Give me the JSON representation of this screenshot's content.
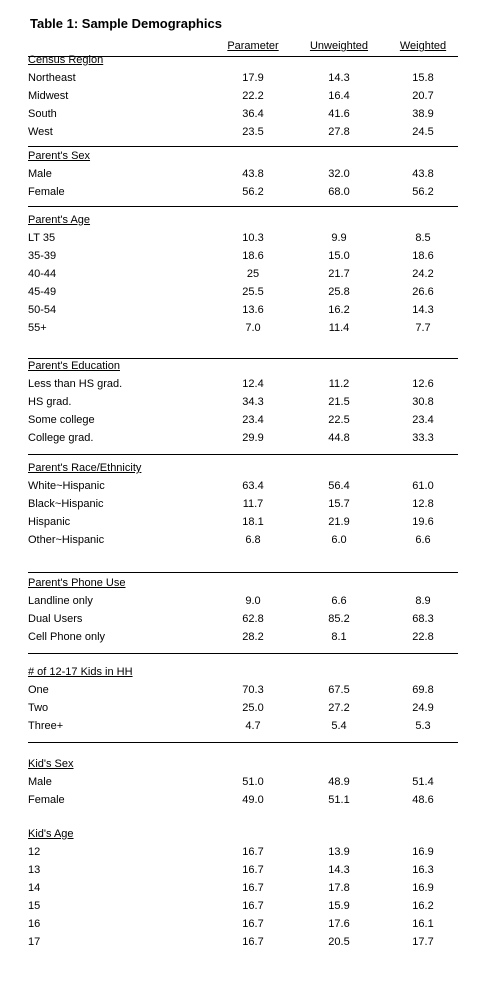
{
  "title": "Table 1: Sample Demographics",
  "columns": [
    "Parameter",
    "Unweighted",
    "Weighted"
  ],
  "sections": [
    {
      "title": "Census Region",
      "rows": [
        {
          "label": "Northeast",
          "parameter": "17.9",
          "unweighted": "14.3",
          "weighted": "15.8"
        },
        {
          "label": "Midwest",
          "parameter": "22.2",
          "unweighted": "16.4",
          "weighted": "20.7"
        },
        {
          "label": "South",
          "parameter": "36.4",
          "unweighted": "41.6",
          "weighted": "38.9"
        },
        {
          "label": "West",
          "parameter": "23.5",
          "unweighted": "27.8",
          "weighted": "24.5"
        }
      ]
    },
    {
      "title": "Parent's Sex",
      "rows": [
        {
          "label": "Male",
          "parameter": "43.8",
          "unweighted": "32.0",
          "weighted": "43.8"
        },
        {
          "label": "Female",
          "parameter": "56.2",
          "unweighted": "68.0",
          "weighted": "56.2"
        }
      ]
    },
    {
      "title": "Parent's Age",
      "rows": [
        {
          "label": "LT 35",
          "parameter": "10.3",
          "unweighted": "9.9",
          "weighted": "8.5"
        },
        {
          "label": "35-39",
          "parameter": "18.6",
          "unweighted": "15.0",
          "weighted": "18.6"
        },
        {
          "label": "40-44",
          "parameter": "25",
          "unweighted": "21.7",
          "weighted": "24.2"
        },
        {
          "label": "45-49",
          "parameter": "25.5",
          "unweighted": "25.8",
          "weighted": "26.6"
        },
        {
          "label": "50-54",
          "parameter": "13.6",
          "unweighted": "16.2",
          "weighted": "14.3"
        },
        {
          "label": "55+",
          "parameter": "7.0",
          "unweighted": "11.4",
          "weighted": "7.7"
        }
      ]
    },
    {
      "title": "Parent's Education",
      "rows": [
        {
          "label": "Less than HS grad.",
          "parameter": "12.4",
          "unweighted": "11.2",
          "weighted": "12.6"
        },
        {
          "label": "HS grad.",
          "parameter": "34.3",
          "unweighted": "21.5",
          "weighted": "30.8"
        },
        {
          "label": "Some college",
          "parameter": "23.4",
          "unweighted": "22.5",
          "weighted": "23.4"
        },
        {
          "label": "College grad.",
          "parameter": "29.9",
          "unweighted": "44.8",
          "weighted": "33.3"
        }
      ]
    },
    {
      "title": "Parent's Race/Ethnicity",
      "rows": [
        {
          "label": "White~Hispanic",
          "parameter": "63.4",
          "unweighted": "56.4",
          "weighted": "61.0"
        },
        {
          "label": "Black~Hispanic",
          "parameter": "11.7",
          "unweighted": "15.7",
          "weighted": "12.8"
        },
        {
          "label": "Hispanic",
          "parameter": "18.1",
          "unweighted": "21.9",
          "weighted": "19.6"
        },
        {
          "label": "Other~Hispanic",
          "parameter": "6.8",
          "unweighted": "6.0",
          "weighted": "6.6"
        }
      ]
    },
    {
      "title": "Parent's Phone Use",
      "rows": [
        {
          "label": "Landline only",
          "parameter": "9.0",
          "unweighted": "6.6",
          "weighted": "8.9"
        },
        {
          "label": "Dual Users",
          "parameter": "62.8",
          "unweighted": "85.2",
          "weighted": "68.3"
        },
        {
          "label": "Cell Phone only",
          "parameter": "28.2",
          "unweighted": "8.1",
          "weighted": "22.8"
        }
      ]
    },
    {
      "title": "# of 12-17 Kids in HH",
      "rows": [
        {
          "label": "One",
          "parameter": "70.3",
          "unweighted": "67.5",
          "weighted": "69.8"
        },
        {
          "label": "Two",
          "parameter": "25.0",
          "unweighted": "27.2",
          "weighted": "24.9"
        },
        {
          "label": "Three+",
          "parameter": "4.7",
          "unweighted": "5.4",
          "weighted": "5.3"
        }
      ]
    },
    {
      "title": "Kid's Sex",
      "rows": [
        {
          "label": "Male",
          "parameter": "51.0",
          "unweighted": "48.9",
          "weighted": "51.4"
        },
        {
          "label": "Female",
          "parameter": "49.0",
          "unweighted": "51.1",
          "weighted": "48.6"
        }
      ]
    },
    {
      "title": "Kid's Age",
      "rows": [
        {
          "label": "12",
          "parameter": "16.7",
          "unweighted": "13.9",
          "weighted": "16.9"
        },
        {
          "label": "13",
          "parameter": "16.7",
          "unweighted": "14.3",
          "weighted": "16.3"
        },
        {
          "label": "14",
          "parameter": "16.7",
          "unweighted": "17.8",
          "weighted": "16.9"
        },
        {
          "label": "15",
          "parameter": "16.7",
          "unweighted": "15.9",
          "weighted": "16.2"
        },
        {
          "label": "16",
          "parameter": "16.7",
          "unweighted": "17.6",
          "weighted": "16.1"
        },
        {
          "label": "17",
          "parameter": "16.7",
          "unweighted": "20.5",
          "weighted": "17.7"
        }
      ]
    }
  ]
}
